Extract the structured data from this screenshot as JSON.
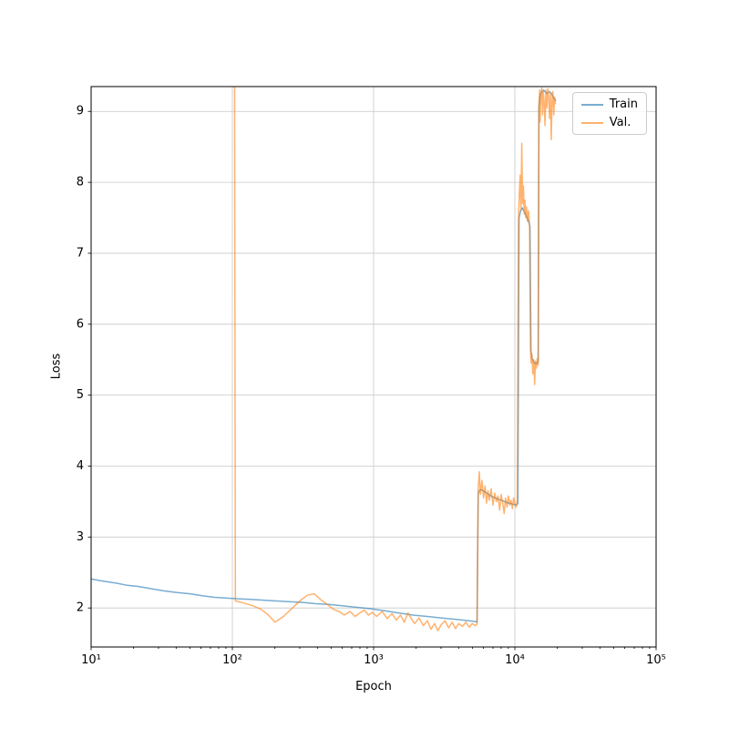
{
  "figure": {
    "background": "#ffffff"
  },
  "chart_data": {
    "type": "line",
    "title": "",
    "xlabel": "Epoch",
    "ylabel": "Loss",
    "x_scale": "log",
    "xlim": [
      10,
      100000
    ],
    "ylim": [
      1.45,
      9.35
    ],
    "x_ticks": [
      10,
      100,
      1000,
      10000,
      100000
    ],
    "x_tick_labels": [
      "10¹",
      "10²",
      "10³",
      "10⁴",
      "10⁵"
    ],
    "y_ticks": [
      2,
      3,
      4,
      5,
      6,
      7,
      8,
      9
    ],
    "grid": true,
    "grid_color": "#c8c8c8",
    "frame_color": "#000000",
    "legend": {
      "position": "upper right"
    },
    "series": [
      {
        "name": "Train",
        "color": "#1f77b4",
        "alpha": 0.6,
        "points": [
          [
            10,
            2.41
          ],
          [
            12,
            2.38
          ],
          [
            15,
            2.35
          ],
          [
            18,
            2.32
          ],
          [
            22,
            2.3
          ],
          [
            27,
            2.27
          ],
          [
            33,
            2.24
          ],
          [
            40,
            2.22
          ],
          [
            50,
            2.2
          ],
          [
            62,
            2.17
          ],
          [
            75,
            2.15
          ],
          [
            90,
            2.14
          ],
          [
            110,
            2.13
          ],
          [
            135,
            2.12
          ],
          [
            165,
            2.11
          ],
          [
            200,
            2.1
          ],
          [
            250,
            2.09
          ],
          [
            310,
            2.08
          ],
          [
            390,
            2.06
          ],
          [
            480,
            2.05
          ],
          [
            600,
            2.03
          ],
          [
            750,
            2.01
          ],
          [
            950,
            1.99
          ],
          [
            1200,
            1.96
          ],
          [
            1500,
            1.93
          ],
          [
            1900,
            1.9
          ],
          [
            2400,
            1.88
          ],
          [
            3000,
            1.86
          ],
          [
            3800,
            1.84
          ],
          [
            4700,
            1.82
          ],
          [
            5200,
            1.81
          ],
          [
            5400,
            1.8
          ],
          [
            5500,
            3.62
          ],
          [
            5700,
            3.67
          ],
          [
            6000,
            3.65
          ],
          [
            6400,
            3.61
          ],
          [
            6900,
            3.57
          ],
          [
            7500,
            3.54
          ],
          [
            8200,
            3.51
          ],
          [
            9000,
            3.48
          ],
          [
            9800,
            3.46
          ],
          [
            10300,
            3.45
          ],
          [
            10500,
            3.47
          ],
          [
            10700,
            7.5
          ],
          [
            11000,
            7.6
          ],
          [
            11300,
            7.64
          ],
          [
            11700,
            7.58
          ],
          [
            12100,
            7.52
          ],
          [
            12500,
            7.45
          ],
          [
            12800,
            7.38
          ],
          [
            13000,
            5.62
          ],
          [
            13200,
            5.52
          ],
          [
            13600,
            5.47
          ],
          [
            14000,
            5.44
          ],
          [
            14400,
            5.45
          ],
          [
            14650,
            5.48
          ],
          [
            14800,
            9.08
          ],
          [
            15100,
            9.22
          ],
          [
            15500,
            9.28
          ],
          [
            16000,
            9.3
          ],
          [
            16500,
            9.27
          ],
          [
            17000,
            9.25
          ],
          [
            17500,
            9.28
          ],
          [
            18000,
            9.26
          ],
          [
            18500,
            9.22
          ],
          [
            19000,
            9.18
          ],
          [
            19500,
            9.15
          ]
        ]
      },
      {
        "name": "Val.",
        "color": "#ff7f0e",
        "alpha": 0.6,
        "points": [
          [
            100,
            30
          ],
          [
            105,
            2.1
          ],
          [
            120,
            2.07
          ],
          [
            140,
            2.03
          ],
          [
            160,
            1.98
          ],
          [
            180,
            1.9
          ],
          [
            200,
            1.8
          ],
          [
            230,
            1.88
          ],
          [
            260,
            1.98
          ],
          [
            300,
            2.1
          ],
          [
            340,
            2.18
          ],
          [
            380,
            2.2
          ],
          [
            420,
            2.12
          ],
          [
            470,
            2.05
          ],
          [
            520,
            1.98
          ],
          [
            570,
            1.95
          ],
          [
            620,
            1.9
          ],
          [
            680,
            1.95
          ],
          [
            740,
            1.88
          ],
          [
            800,
            1.93
          ],
          [
            860,
            1.97
          ],
          [
            920,
            1.9
          ],
          [
            980,
            1.94
          ],
          [
            1050,
            1.88
          ],
          [
            1150,
            1.95
          ],
          [
            1250,
            1.85
          ],
          [
            1350,
            1.92
          ],
          [
            1450,
            1.83
          ],
          [
            1550,
            1.9
          ],
          [
            1650,
            1.8
          ],
          [
            1750,
            1.93
          ],
          [
            1850,
            1.85
          ],
          [
            1950,
            1.78
          ],
          [
            2100,
            1.86
          ],
          [
            2250,
            1.75
          ],
          [
            2400,
            1.82
          ],
          [
            2550,
            1.7
          ],
          [
            2700,
            1.78
          ],
          [
            2850,
            1.68
          ],
          [
            3000,
            1.76
          ],
          [
            3200,
            1.82
          ],
          [
            3400,
            1.72
          ],
          [
            3600,
            1.8
          ],
          [
            3800,
            1.71
          ],
          [
            4000,
            1.78
          ],
          [
            4250,
            1.74
          ],
          [
            4500,
            1.8
          ],
          [
            4750,
            1.73
          ],
          [
            5000,
            1.78
          ],
          [
            5250,
            1.75
          ],
          [
            5400,
            1.77
          ],
          [
            5500,
            3.7
          ],
          [
            5600,
            3.92
          ],
          [
            5700,
            3.6
          ],
          [
            5850,
            3.8
          ],
          [
            6000,
            3.55
          ],
          [
            6150,
            3.72
          ],
          [
            6300,
            3.48
          ],
          [
            6450,
            3.65
          ],
          [
            6600,
            3.52
          ],
          [
            6800,
            3.68
          ],
          [
            7000,
            3.45
          ],
          [
            7200,
            3.62
          ],
          [
            7400,
            3.5
          ],
          [
            7600,
            3.58
          ],
          [
            7800,
            3.38
          ],
          [
            8000,
            3.6
          ],
          [
            8200,
            3.48
          ],
          [
            8400,
            3.33
          ],
          [
            8600,
            3.55
          ],
          [
            8800,
            3.42
          ],
          [
            9000,
            3.58
          ],
          [
            9200,
            3.45
          ],
          [
            9400,
            3.52
          ],
          [
            9600,
            3.4
          ],
          [
            9800,
            3.55
          ],
          [
            10000,
            3.48
          ],
          [
            10200,
            3.42
          ],
          [
            10400,
            3.52
          ],
          [
            10600,
            7.45
          ],
          [
            10750,
            7.85
          ],
          [
            10900,
            8.1
          ],
          [
            11050,
            7.6
          ],
          [
            11200,
            8.55
          ],
          [
            11350,
            7.7
          ],
          [
            11500,
            7.95
          ],
          [
            11650,
            7.55
          ],
          [
            11800,
            7.75
          ],
          [
            11950,
            7.5
          ],
          [
            12100,
            7.65
          ],
          [
            12300,
            7.45
          ],
          [
            12500,
            7.6
          ],
          [
            12700,
            7.4
          ],
          [
            12900,
            5.65
          ],
          [
            13050,
            5.45
          ],
          [
            13200,
            5.58
          ],
          [
            13400,
            5.3
          ],
          [
            13600,
            5.5
          ],
          [
            13800,
            5.15
          ],
          [
            14000,
            5.48
          ],
          [
            14200,
            5.38
          ],
          [
            14400,
            5.52
          ],
          [
            14600,
            5.42
          ],
          [
            14800,
            9.05
          ],
          [
            14950,
            9.3
          ],
          [
            15100,
            8.85
          ],
          [
            15300,
            9.25
          ],
          [
            15500,
            9.33
          ],
          [
            15700,
            8.95
          ],
          [
            15900,
            9.28
          ],
          [
            16100,
            9.15
          ],
          [
            16350,
            8.8
          ],
          [
            16600,
            9.3
          ],
          [
            16850,
            9.05
          ],
          [
            17100,
            9.32
          ],
          [
            17350,
            9.18
          ],
          [
            17600,
            8.9
          ],
          [
            17850,
            9.25
          ],
          [
            18100,
            8.6
          ],
          [
            18350,
            9.15
          ],
          [
            18600,
            9.28
          ],
          [
            18850,
            8.95
          ],
          [
            19100,
            9.2
          ],
          [
            19400,
            9.1
          ]
        ]
      }
    ]
  }
}
